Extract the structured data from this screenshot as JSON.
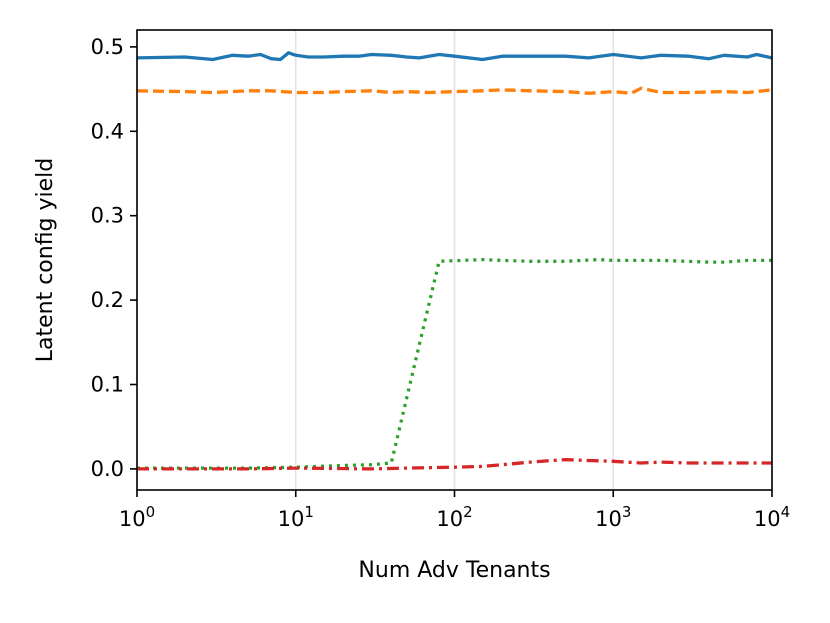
{
  "chart_data": {
    "type": "line",
    "xlabel": "Num Adv Tenants",
    "ylabel": "Latent config yield",
    "xscale": "log",
    "xlim": [
      1,
      10000
    ],
    "ylim": [
      -0.025,
      0.52
    ],
    "x_ticks": [
      {
        "value": 1,
        "base": "10",
        "exp": "0"
      },
      {
        "value": 10,
        "base": "10",
        "exp": "1"
      },
      {
        "value": 100,
        "base": "10",
        "exp": "2"
      },
      {
        "value": 1000,
        "base": "10",
        "exp": "3"
      },
      {
        "value": 10000,
        "base": "10",
        "exp": "4"
      }
    ],
    "y_ticks": [
      "0.0",
      "0.1",
      "0.2",
      "0.3",
      "0.4",
      "0.5"
    ],
    "grid": "vertical at decades",
    "legend": "none",
    "series": [
      {
        "color": "#1f77b4",
        "style": "solid",
        "points": [
          [
            1,
            0.487
          ],
          [
            2,
            0.488
          ],
          [
            3,
            0.485
          ],
          [
            4,
            0.49
          ],
          [
            5,
            0.489
          ],
          [
            6,
            0.491
          ],
          [
            7,
            0.486
          ],
          [
            8,
            0.485
          ],
          [
            9,
            0.493
          ],
          [
            10,
            0.49
          ],
          [
            12,
            0.488
          ],
          [
            15,
            0.488
          ],
          [
            20,
            0.489
          ],
          [
            25,
            0.489
          ],
          [
            30,
            0.491
          ],
          [
            40,
            0.49
          ],
          [
            50,
            0.488
          ],
          [
            60,
            0.487
          ],
          [
            80,
            0.491
          ],
          [
            100,
            0.489
          ],
          [
            150,
            0.485
          ],
          [
            200,
            0.489
          ],
          [
            300,
            0.489
          ],
          [
            400,
            0.489
          ],
          [
            500,
            0.489
          ],
          [
            700,
            0.487
          ],
          [
            1000,
            0.491
          ],
          [
            1500,
            0.487
          ],
          [
            2000,
            0.49
          ],
          [
            3000,
            0.489
          ],
          [
            4000,
            0.486
          ],
          [
            5000,
            0.49
          ],
          [
            7000,
            0.488
          ],
          [
            8000,
            0.491
          ],
          [
            10000,
            0.487
          ]
        ]
      },
      {
        "color": "#ff7f0e",
        "style": "dashed",
        "points": [
          [
            1,
            0.448
          ],
          [
            2,
            0.447
          ],
          [
            3,
            0.446
          ],
          [
            5,
            0.448
          ],
          [
            7,
            0.448
          ],
          [
            10,
            0.446
          ],
          [
            15,
            0.446
          ],
          [
            20,
            0.447
          ],
          [
            30,
            0.448
          ],
          [
            40,
            0.446
          ],
          [
            50,
            0.447
          ],
          [
            70,
            0.446
          ],
          [
            100,
            0.447
          ],
          [
            150,
            0.448
          ],
          [
            200,
            0.449
          ],
          [
            300,
            0.448
          ],
          [
            500,
            0.447
          ],
          [
            700,
            0.445
          ],
          [
            1000,
            0.447
          ],
          [
            1300,
            0.445
          ],
          [
            1500,
            0.451
          ],
          [
            2000,
            0.446
          ],
          [
            3000,
            0.446
          ],
          [
            5000,
            0.447
          ],
          [
            7000,
            0.446
          ],
          [
            10000,
            0.449
          ]
        ]
      },
      {
        "color": "#2ca02c",
        "style": "dotted",
        "points": [
          [
            1,
            0.001
          ],
          [
            5,
            0.001
          ],
          [
            10,
            0.002
          ],
          [
            20,
            0.004
          ],
          [
            30,
            0.005
          ],
          [
            40,
            0.007
          ],
          [
            80,
            0.246
          ],
          [
            150,
            0.248
          ],
          [
            200,
            0.247
          ],
          [
            300,
            0.246
          ],
          [
            500,
            0.246
          ],
          [
            800,
            0.248
          ],
          [
            1000,
            0.247
          ],
          [
            2000,
            0.247
          ],
          [
            4000,
            0.245
          ],
          [
            5000,
            0.245
          ],
          [
            7000,
            0.247
          ],
          [
            10000,
            0.247
          ]
        ]
      },
      {
        "color": "#d62728",
        "style": "dashdot",
        "points": [
          [
            1,
            0.0
          ],
          [
            5,
            0.0
          ],
          [
            10,
            0.001
          ],
          [
            30,
            0.0
          ],
          [
            50,
            0.001
          ],
          [
            100,
            0.002
          ],
          [
            150,
            0.003
          ],
          [
            200,
            0.005
          ],
          [
            300,
            0.008
          ],
          [
            500,
            0.011
          ],
          [
            700,
            0.01
          ],
          [
            1000,
            0.009
          ],
          [
            1500,
            0.007
          ],
          [
            2000,
            0.008
          ],
          [
            3000,
            0.007
          ],
          [
            5000,
            0.007
          ],
          [
            10000,
            0.007
          ]
        ]
      }
    ]
  }
}
